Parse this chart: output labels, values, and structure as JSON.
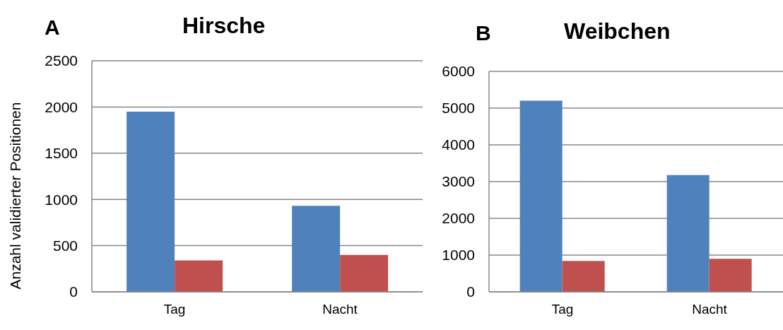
{
  "chart_data": [
    {
      "type": "bar",
      "title": "Hirsche",
      "annotations": [
        "A"
      ],
      "ylabel": "Anzahl validierter Positionen",
      "categories": [
        "Tag",
        "Nacht"
      ],
      "series": [
        {
          "color": "#4f81bd",
          "values": [
            1950,
            930
          ]
        },
        {
          "color": "#c0504d",
          "values": [
            340,
            400
          ]
        }
      ],
      "ylim": [
        0,
        2500
      ],
      "yticks": [
        0,
        500,
        1000,
        1500,
        2000,
        2500
      ],
      "grid": "y",
      "legend": false
    },
    {
      "type": "bar",
      "title": "Weibchen",
      "annotations": [
        "B"
      ],
      "categories": [
        "Tag",
        "Nacht"
      ],
      "series": [
        {
          "color": "#4f81bd",
          "values": [
            5200,
            3180
          ]
        },
        {
          "color": "#c0504d",
          "values": [
            840,
            900
          ]
        }
      ],
      "ylim": [
        0,
        6000
      ],
      "yticks": [
        0,
        1000,
        2000,
        3000,
        4000,
        5000,
        6000
      ],
      "grid": "y",
      "legend": false
    }
  ]
}
